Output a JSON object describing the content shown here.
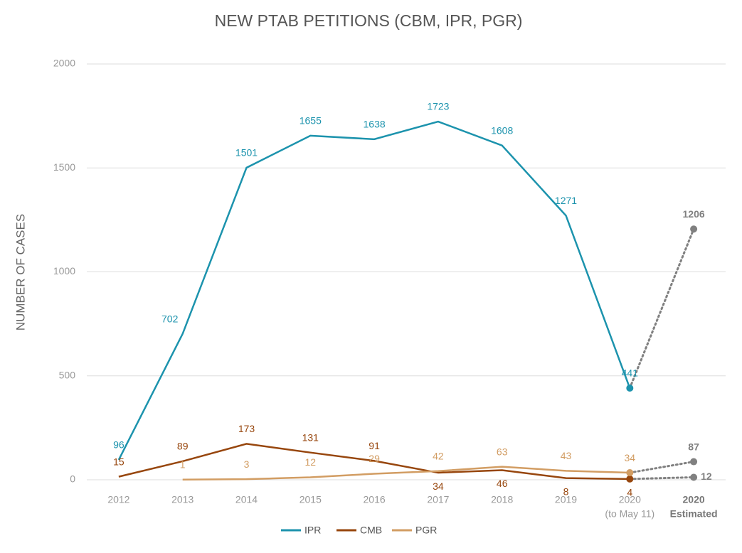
{
  "chart_data": {
    "type": "line",
    "title": "NEW PTAB PETITIONS (CBM, IPR, PGR)",
    "y_label": "NUMBER OF CASES",
    "categories": [
      "2012",
      "2013",
      "2014",
      "2015",
      "2016",
      "2017",
      "2018",
      "2019",
      "2020",
      "2020"
    ],
    "sublabels": [
      null,
      null,
      null,
      null,
      null,
      null,
      null,
      null,
      "(to May 11)",
      "Estimated"
    ],
    "series": [
      {
        "name": "IPR",
        "color": "#1c93ad",
        "values": [
          96,
          702,
          1501,
          1655,
          1638,
          1723,
          1608,
          1271,
          441,
          1206
        ]
      },
      {
        "name": "CMB",
        "color": "#97460d",
        "values": [
          15,
          89,
          173,
          131,
          91,
          34,
          46,
          8,
          4,
          12
        ]
      },
      {
        "name": "PGR",
        "color": "#d29d63",
        "values": [
          null,
          1,
          3,
          12,
          29,
          42,
          63,
          43,
          34,
          87
        ]
      }
    ],
    "projection": {
      "color": "#808080",
      "from_index": 8
    },
    "ylim": [
      0,
      2000
    ],
    "yticks": [
      0,
      500,
      1000,
      1500,
      2000
    ],
    "grid": true,
    "legend": "bottom"
  }
}
